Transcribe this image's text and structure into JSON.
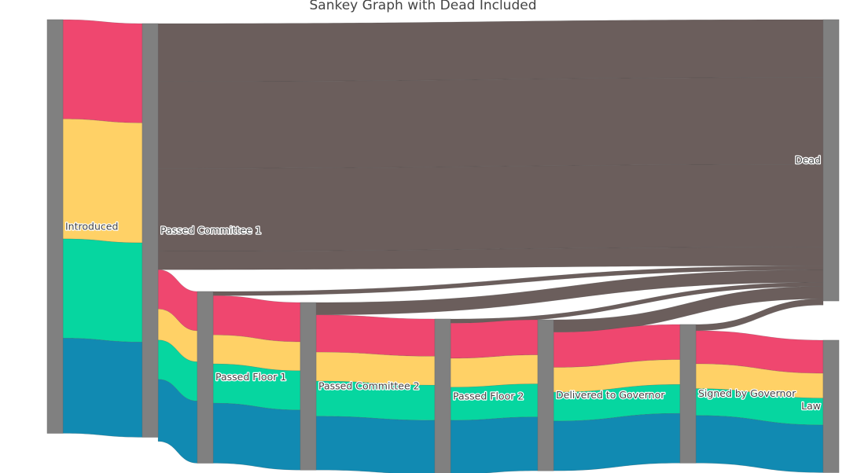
{
  "chart_data": {
    "type": "sankey",
    "title": "Sankey Graph with Dead Included",
    "nodes": [
      {
        "name": "Introduced",
        "value": 100
      },
      {
        "name": "Passed Committee 1",
        "value": 100
      },
      {
        "name": "Passed Floor 1",
        "value": 41.5
      },
      {
        "name": "Passed Committee 2",
        "value": 40.5
      },
      {
        "name": "Passed Floor 2",
        "value": 37.5
      },
      {
        "name": "Delivered to Governor",
        "value": 36.5
      },
      {
        "name": "Signed by Governor",
        "value": 33.5
      },
      {
        "name": "Law",
        "value": 32
      },
      {
        "name": "Dead",
        "value": 68
      }
    ],
    "links": [
      {
        "source": "Introduced",
        "target": "Passed Committee 1",
        "value": 24,
        "color": "#ef476f"
      },
      {
        "source": "Introduced",
        "target": "Passed Committee 1",
        "value": 29,
        "color": "#ffd166"
      },
      {
        "source": "Introduced",
        "target": "Passed Committee 1",
        "value": 24,
        "color": "#06d6a0"
      },
      {
        "source": "Introduced",
        "target": "Passed Committee 1",
        "value": 23,
        "color": "#118ab2"
      },
      {
        "source": "Passed Committee 1",
        "target": "Dead",
        "value": 14,
        "color": "#6b5e5c"
      },
      {
        "source": "Passed Committee 1",
        "target": "Dead",
        "value": 21,
        "color": "#6b5e5c"
      },
      {
        "source": "Passed Committee 1",
        "target": "Dead",
        "value": 20,
        "color": "#6b5e5c"
      },
      {
        "source": "Passed Committee 1",
        "target": "Dead",
        "value": 4.5,
        "color": "#6b5e5c"
      },
      {
        "source": "Passed Committee 1",
        "target": "Passed Floor 1",
        "value": 9.5,
        "color": "#ef476f"
      },
      {
        "source": "Passed Committee 1",
        "target": "Passed Floor 1",
        "value": 7.5,
        "color": "#ffd166"
      },
      {
        "source": "Passed Committee 1",
        "target": "Passed Floor 1",
        "value": 9.5,
        "color": "#06d6a0"
      },
      {
        "source": "Passed Committee 1",
        "target": "Passed Floor 1",
        "value": 15,
        "color": "#118ab2"
      },
      {
        "source": "Passed Floor 1",
        "target": "Dead",
        "value": 1,
        "color": "#6b5e5c"
      },
      {
        "source": "Passed Floor 1",
        "target": "Passed Committee 2",
        "value": 9.5,
        "color": "#ef476f"
      },
      {
        "source": "Passed Floor 1",
        "target": "Passed Committee 2",
        "value": 7,
        "color": "#ffd166"
      },
      {
        "source": "Passed Floor 1",
        "target": "Passed Committee 2",
        "value": 9.5,
        "color": "#06d6a0"
      },
      {
        "source": "Passed Floor 1",
        "target": "Passed Committee 2",
        "value": 14.5,
        "color": "#118ab2"
      },
      {
        "source": "Passed Committee 2",
        "target": "Dead",
        "value": 3,
        "color": "#6b5e5c"
      },
      {
        "source": "Passed Committee 2",
        "target": "Passed Floor 2",
        "value": 9,
        "color": "#ef476f"
      },
      {
        "source": "Passed Committee 2",
        "target": "Passed Floor 2",
        "value": 7,
        "color": "#ffd166"
      },
      {
        "source": "Passed Committee 2",
        "target": "Passed Floor 2",
        "value": 8.5,
        "color": "#06d6a0"
      },
      {
        "source": "Passed Committee 2",
        "target": "Passed Floor 2",
        "value": 13,
        "color": "#118ab2"
      },
      {
        "source": "Passed Floor 2",
        "target": "Dead",
        "value": 1,
        "color": "#6b5e5c"
      },
      {
        "source": "Passed Floor 2",
        "target": "Delivered to Governor",
        "value": 8.5,
        "color": "#ef476f"
      },
      {
        "source": "Passed Floor 2",
        "target": "Delivered to Governor",
        "value": 7,
        "color": "#ffd166"
      },
      {
        "source": "Passed Floor 2",
        "target": "Delivered to Governor",
        "value": 8,
        "color": "#06d6a0"
      },
      {
        "source": "Passed Floor 2",
        "target": "Delivered to Governor",
        "value": 13,
        "color": "#118ab2"
      },
      {
        "source": "Delivered to Governor",
        "target": "Dead",
        "value": 3,
        "color": "#6b5e5c"
      },
      {
        "source": "Delivered to Governor",
        "target": "Signed by Governor",
        "value": 8.5,
        "color": "#ef476f"
      },
      {
        "source": "Delivered to Governor",
        "target": "Signed by Governor",
        "value": 6,
        "color": "#ffd166"
      },
      {
        "source": "Delivered to Governor",
        "target": "Signed by Governor",
        "value": 7,
        "color": "#06d6a0"
      },
      {
        "source": "Delivered to Governor",
        "target": "Signed by Governor",
        "value": 12,
        "color": "#118ab2"
      },
      {
        "source": "Signed by Governor",
        "target": "Dead",
        "value": 1.5,
        "color": "#6b5e5c"
      },
      {
        "source": "Signed by Governor",
        "target": "Law",
        "value": 8,
        "color": "#ef476f"
      },
      {
        "source": "Signed by Governor",
        "target": "Law",
        "value": 6,
        "color": "#ffd166"
      },
      {
        "source": "Signed by Governor",
        "target": "Law",
        "value": 6.5,
        "color": "#06d6a0"
      },
      {
        "source": "Signed by Governor",
        "target": "Law",
        "value": 11.5,
        "color": "#118ab2"
      }
    ],
    "colors": {
      "node": "#808080",
      "dead_flow": "#6b5e5c",
      "red": "#ef476f",
      "yellow": "#ffd166",
      "green": "#06d6a0",
      "blue": "#118ab2"
    }
  }
}
